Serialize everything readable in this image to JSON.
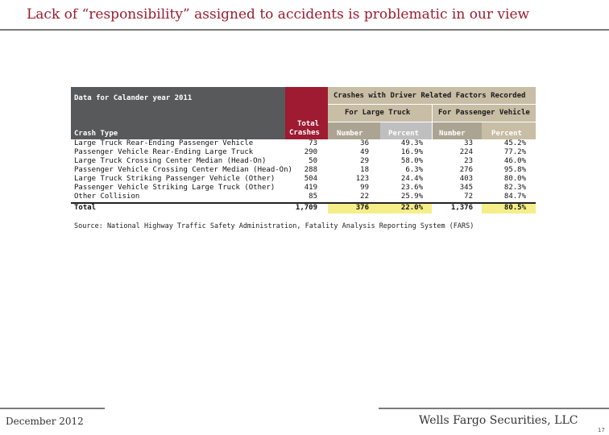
{
  "title": "Lack of “responsibility” assigned to accidents is problematic in our view",
  "table": {
    "data_label": "Data for Calander year 2011",
    "group_header": "Crashes with Driver Related Factors Recorded",
    "sub_header_truck": "For Large Truck",
    "sub_header_passenger": "For Passenger Vehicle",
    "col_crash_type": "Crash Type",
    "col_total_line1": "Total",
    "col_total_line2": "Crashes",
    "col_number": "Number",
    "col_percent": "Percent",
    "rows": [
      {
        "type": "Large Truck Rear-Ending Passenger Vehicle",
        "total": "73",
        "truck_num": "36",
        "truck_pct": "49.3%",
        "pv_num": "33",
        "pv_pct": "45.2%"
      },
      {
        "type": "Passenger Vehicle Rear-Ending Large Truck",
        "total": "290",
        "truck_num": "49",
        "truck_pct": "16.9%",
        "pv_num": "224",
        "pv_pct": "77.2%"
      },
      {
        "type": "Large Truck Crossing Center Median (Head-On)",
        "total": "50",
        "truck_num": "29",
        "truck_pct": "58.0%",
        "pv_num": "23",
        "pv_pct": "46.0%"
      },
      {
        "type": "Passenger Vehicle Crossing Center Median (Head-On)",
        "total": "288",
        "truck_num": "18",
        "truck_pct": "6.3%",
        "pv_num": "276",
        "pv_pct": "95.8%"
      },
      {
        "type": "Large Truck Striking Passenger Vehicle (Other)",
        "total": "504",
        "truck_num": "123",
        "truck_pct": "24.4%",
        "pv_num": "403",
        "pv_pct": "80.0%"
      },
      {
        "type": "Passenger Vehicle Striking Large Truck (Other)",
        "total": "419",
        "truck_num": "99",
        "truck_pct": "23.6%",
        "pv_num": "345",
        "pv_pct": "82.3%"
      },
      {
        "type": "Other Collision",
        "total": "85",
        "truck_num": "22",
        "truck_pct": "25.9%",
        "pv_num": "72",
        "pv_pct": "84.7%"
      }
    ],
    "total_row": {
      "type": "Total",
      "total": "1,709",
      "truck_num": "376",
      "truck_pct": "22.0%",
      "pv_num": "1,376",
      "pv_pct": "80.5%"
    }
  },
  "source": "Source: National Highway Traffic Safety Administration, Fatality Analysis Reporting System (FARS)",
  "footer": {
    "date": "December 2012",
    "brand": "Wells Fargo Securities, LLC",
    "page": "17"
  }
}
